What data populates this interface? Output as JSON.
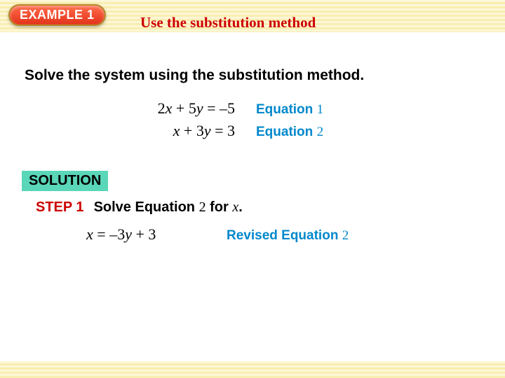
{
  "badge": {
    "text": "EXAMPLE 1"
  },
  "title": "Use the substitution method",
  "problem": "Solve the system using the substitution method.",
  "equations": [
    {
      "lhs_coef1": "2",
      "var1": "x",
      "op": " + ",
      "coef2": "5",
      "var2": "y",
      "eq": " = ",
      "rhs": "–5",
      "label": "Equation ",
      "num": "1"
    },
    {
      "lhs_coef1": "",
      "var1": "x",
      "op": " + ",
      "coef2": "3",
      "var2": "y",
      "eq": " = ",
      "rhs": "3",
      "label": "Equation ",
      "num": "2"
    }
  ],
  "solution_label": "SOLUTION",
  "step": {
    "label": "STEP 1",
    "text_pre": "Solve Equation ",
    "text_num": "2",
    "text_mid": " for ",
    "text_var": "x",
    "text_post": "."
  },
  "revised": {
    "var": "x",
    "eq": " = ",
    "coef": "–3",
    "var2": "y",
    "op": " + ",
    "rhs": "3",
    "label": "Revised Equation ",
    "num": "2"
  },
  "colors": {
    "red": "#cc0000",
    "teal": "#5ad6b8",
    "blue": "#0088cc",
    "band": "#f9eeb0"
  }
}
